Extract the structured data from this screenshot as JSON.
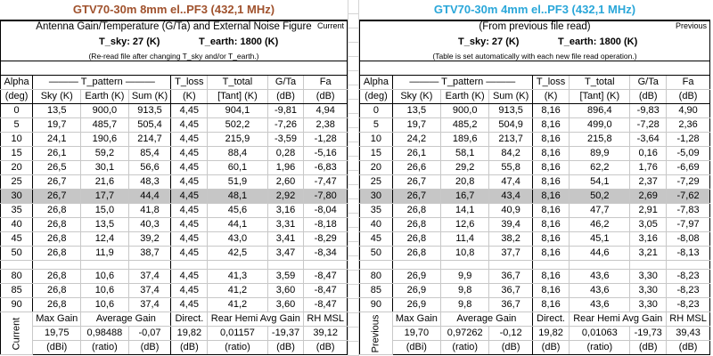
{
  "current": {
    "title": "GTV70-30m 8mm el..PF3 (432,1 MHz)",
    "title_color": "#a0522d",
    "header_line1": "Antenna Gain/Temperature (G/Ta) and External Noise Figure",
    "corner_label": "Current",
    "t_sky": "T_sky:  27  (K)",
    "t_earth": "T_earth:  1800  (K)",
    "note": "(Re-read file after changing T_sky and/or T_earth.)",
    "columns": {
      "alpha": "Alpha",
      "alpha_unit": "(deg)",
      "t_pattern": "——— T_pattern ———",
      "sky": "Sky (K)",
      "earth": "Earth (K)",
      "sum": "Sum (K)",
      "t_loss": "T_loss",
      "t_loss_unit": "(K)",
      "t_total": "T_total",
      "t_total_unit": "[Tant] (K)",
      "gta": "G/Ta",
      "gta_unit": "(dB)",
      "fa": "Fa",
      "fa_unit": "(dB)"
    },
    "rows": [
      [
        "0",
        "13,5",
        "900,0",
        "913,5",
        "4,45",
        "904,1",
        "-9,81",
        "4,94"
      ],
      [
        "5",
        "19,7",
        "485,7",
        "505,4",
        "4,45",
        "502,2",
        "-7,26",
        "2,38"
      ],
      [
        "10",
        "24,1",
        "190,6",
        "214,7",
        "4,45",
        "215,9",
        "-3,59",
        "-1,28"
      ],
      [
        "15",
        "26,1",
        "59,2",
        "85,4",
        "4,45",
        "88,4",
        "0,28",
        "-5,16"
      ],
      [
        "20",
        "26,5",
        "30,1",
        "56,6",
        "4,45",
        "60,1",
        "1,96",
        "-6,83"
      ],
      [
        "25",
        "26,7",
        "21,6",
        "48,3",
        "4,45",
        "51,9",
        "2,60",
        "-7,47"
      ],
      [
        "30",
        "26,7",
        "17,7",
        "44,4",
        "4,45",
        "48,1",
        "2,92",
        "-7,80"
      ],
      [
        "35",
        "26,8",
        "15,0",
        "41,8",
        "4,45",
        "45,6",
        "3,16",
        "-8,04"
      ],
      [
        "40",
        "26,8",
        "13,5",
        "40,3",
        "4,45",
        "44,1",
        "3,31",
        "-8,18"
      ],
      [
        "45",
        "26,8",
        "12,4",
        "39,2",
        "4,45",
        "43,0",
        "3,41",
        "-8,29"
      ],
      [
        "50",
        "26,8",
        "11,9",
        "38,7",
        "4,45",
        "42,5",
        "3,47",
        "-8,34"
      ]
    ],
    "rows_tail": [
      [
        "80",
        "26,8",
        "10,6",
        "37,4",
        "4,45",
        "41,3",
        "3,59",
        "-8,47"
      ],
      [
        "85",
        "26,8",
        "10,6",
        "37,4",
        "4,45",
        "41,2",
        "3,60",
        "-8,47"
      ],
      [
        "90",
        "26,8",
        "10,6",
        "37,4",
        "4,45",
        "41,2",
        "3,60",
        "-8,47"
      ]
    ],
    "summary": {
      "side_label": "Current",
      "max_gain_label": "Max Gain",
      "avg_gain_label": "Average Gain",
      "direct_label": "Direct.",
      "rear_label": "Rear Hemi Avg Gain",
      "rh_msl_label": "RH MSL",
      "max_gain": "19,75",
      "avg_ratio": "0,98488",
      "avg_db": "-0,07",
      "direct": "19,82",
      "rear_ratio": "0,01157",
      "rear_db": "-19,37",
      "rh_msl": "39,12",
      "u_dbi": "(dBi)",
      "u_ratio": "(ratio)",
      "u_db": "(dB)"
    }
  },
  "previous": {
    "title": "GTV70-30m 4mm el..PF3 (432,1 MHz)",
    "title_color": "#2aa7d9",
    "header_line1": "(From previous file read)",
    "corner_label": "Previous",
    "t_sky": "T_sky:  27  (K)",
    "t_earth": "T_earth:  1800  (K)",
    "note": "(Table is set automatically with each new file read operation.)",
    "columns": {
      "alpha": "Alpha",
      "alpha_unit": "(deg)",
      "t_pattern": "——— T_pattern ———",
      "sky": "Sky (K)",
      "earth": "Earth (K)",
      "sum": "Sum (K)",
      "t_loss": "T_loss",
      "t_loss_unit": "(K)",
      "t_total": "T_total",
      "t_total_unit": "[Tant] (K)",
      "gta": "G/Ta",
      "gta_unit": "(dB)",
      "fa": "Fa",
      "fa_unit": "(dB)"
    },
    "rows": [
      [
        "0",
        "13,5",
        "900,0",
        "913,5",
        "8,16",
        "896,4",
        "-9,83",
        "4,90"
      ],
      [
        "5",
        "19,7",
        "485,2",
        "504,9",
        "8,16",
        "499,0",
        "-7,28",
        "2,36"
      ],
      [
        "10",
        "24,2",
        "189,6",
        "213,7",
        "8,16",
        "215,8",
        "-3,64",
        "-1,28"
      ],
      [
        "15",
        "26,1",
        "58,1",
        "84,2",
        "8,16",
        "89,9",
        "0,16",
        "-5,09"
      ],
      [
        "20",
        "26,6",
        "29,2",
        "55,8",
        "8,16",
        "62,2",
        "1,76",
        "-6,69"
      ],
      [
        "25",
        "26,7",
        "20,8",
        "47,4",
        "8,16",
        "54,1",
        "2,37",
        "-7,29"
      ],
      [
        "30",
        "26,7",
        "16,7",
        "43,4",
        "8,16",
        "50,2",
        "2,69",
        "-7,62"
      ],
      [
        "35",
        "26,8",
        "14,1",
        "40,9",
        "8,16",
        "47,7",
        "2,91",
        "-7,83"
      ],
      [
        "40",
        "26,8",
        "12,6",
        "39,4",
        "8,16",
        "46,2",
        "3,05",
        "-7,97"
      ],
      [
        "45",
        "26,8",
        "11,4",
        "38,2",
        "8,16",
        "45,1",
        "3,16",
        "-8,08"
      ],
      [
        "50",
        "26,8",
        "10,8",
        "37,7",
        "8,16",
        "44,6",
        "3,21",
        "-8,13"
      ]
    ],
    "rows_tail": [
      [
        "80",
        "26,9",
        "9,9",
        "36,7",
        "8,16",
        "43,6",
        "3,30",
        "-8,23"
      ],
      [
        "85",
        "26,9",
        "9,8",
        "36,7",
        "8,16",
        "43,6",
        "3,30",
        "-8,23"
      ],
      [
        "90",
        "26,9",
        "9,8",
        "36,7",
        "8,16",
        "43,6",
        "3,30",
        "-8,23"
      ]
    ],
    "summary": {
      "side_label": "Previous",
      "max_gain_label": "Max Gain",
      "avg_gain_label": "Average Gain",
      "direct_label": "Direct.",
      "rear_label": "Rear Hemi Avg Gain",
      "rh_msl_label": "RH MSL",
      "max_gain": "19,70",
      "avg_ratio": "0,97262",
      "avg_db": "-0,12",
      "direct": "19,82",
      "rear_ratio": "0,01063",
      "rear_db": "-19,73",
      "rh_msl": "39,43",
      "u_dbi": "(dBi)",
      "u_ratio": "(ratio)",
      "u_db": "(dB)"
    }
  },
  "highlight_row_alpha": "30"
}
